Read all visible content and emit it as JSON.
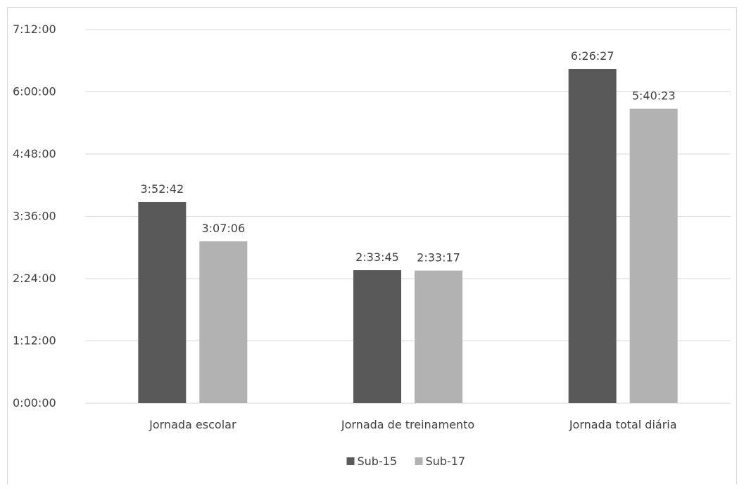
{
  "chart_data": {
    "type": "bar",
    "title": "",
    "xlabel": "",
    "ylabel": "",
    "categories": [
      "Jornada escolar",
      "Jornada de treinamento",
      "Jornada total diária"
    ],
    "series": [
      {
        "name": "Sub-15",
        "color": "#595959",
        "values": [
          "3:52:42",
          "2:33:45",
          "6:26:27"
        ],
        "labels": [
          "3:52:42",
          "2:33:45",
          "6:26:27"
        ]
      },
      {
        "name": "Sub-17",
        "color": "#b2b2b2",
        "values": [
          "3:07:06",
          "2:33:17",
          "5:40:23"
        ],
        "labels": [
          "3:07:06",
          "2:33:17",
          "5:40:23"
        ]
      }
    ],
    "y_ticks": [
      "0:00:00",
      "1:12:00",
      "2:24:00",
      "3:36:00",
      "4:48:00",
      "6:00:00",
      "7:12:00"
    ],
    "ylim": [
      "0:00:00",
      "7:12:00"
    ],
    "grid": true,
    "legend_position": "bottom"
  }
}
